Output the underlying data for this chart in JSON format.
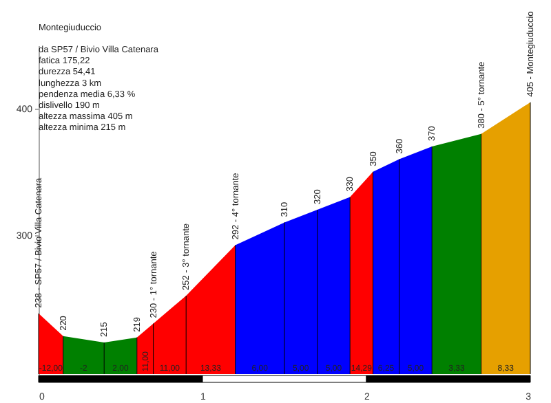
{
  "chart_data": {
    "type": "area",
    "title": "Montegiuduccio",
    "xlim": [
      0,
      3
    ],
    "xticks": [
      0,
      1,
      2,
      3
    ],
    "ylim": [
      190,
      450
    ],
    "yticks": [
      300,
      400
    ],
    "grid": false,
    "series": [
      {
        "color": "#ff0000",
        "x": [
          0,
          0.15
        ],
        "values": [
          238,
          220
        ]
      },
      {
        "color": "#008000",
        "x": [
          0.15,
          0.4,
          0.6
        ],
        "values": [
          220,
          215,
          219
        ]
      },
      {
        "color": "#ff0000",
        "x": [
          0.6,
          0.7,
          0.9,
          1.2
        ],
        "values": [
          219,
          230,
          252,
          292
        ]
      },
      {
        "color": "#0000ff",
        "x": [
          1.2,
          1.5,
          1.7,
          1.9
        ],
        "values": [
          292,
          310,
          320,
          330
        ]
      },
      {
        "color": "#ff0000",
        "x": [
          1.9,
          2.04
        ],
        "values": [
          330,
          350
        ]
      },
      {
        "color": "#0000ff",
        "x": [
          2.04,
          2.2,
          2.4
        ],
        "values": [
          350,
          360,
          370
        ]
      },
      {
        "color": "#008000",
        "x": [
          2.4,
          2.7
        ],
        "values": [
          370,
          380
        ]
      },
      {
        "color": "#e6a000",
        "x": [
          2.7,
          3
        ],
        "values": [
          380,
          405
        ]
      }
    ],
    "annotations": [
      "da SP57 / Bivio Villa Catenara",
      "fatica 175,22",
      "durezza 54,41",
      "lunghezza 3 km",
      "pendenza media 6,33 %",
      "dislivello 190 m",
      "altezza massima 405 m",
      "altezza minima 215 m",
      {
        "text": "238 - SP57 / Bivio Villa Catenara",
        "x": 0,
        "y": 238
      },
      {
        "text": "220",
        "x": 0.15,
        "y": 220
      },
      {
        "text": "215",
        "x": 0.4,
        "y": 215
      },
      {
        "text": "219",
        "x": 0.6,
        "y": 219
      },
      {
        "text": "230 - 1° tornante",
        "x": 0.7,
        "y": 230
      },
      {
        "text": "252 - 3° tornante",
        "x": 0.9,
        "y": 252
      },
      {
        "text": "292 - 4° tornante",
        "x": 1.2,
        "y": 292
      },
      {
        "text": "310",
        "x": 1.5,
        "y": 310
      },
      {
        "text": "320",
        "x": 1.7,
        "y": 320
      },
      {
        "text": "330",
        "x": 1.9,
        "y": 330
      },
      {
        "text": "350",
        "x": 2.04,
        "y": 350
      },
      {
        "text": "360",
        "x": 2.2,
        "y": 360
      },
      {
        "text": "370",
        "x": 2.4,
        "y": 370
      },
      {
        "text": "380 - 5° tornante",
        "x": 2.7,
        "y": 380
      },
      {
        "text": "405 - Montegiuduccio",
        "x": 3,
        "y": 405
      },
      {
        "text": "-12,00",
        "x": 0.075,
        "y": 195
      },
      {
        "text": "-2",
        "x": 0.275,
        "y": 195
      },
      {
        "text": "2,00",
        "x": 0.5,
        "y": 195
      },
      {
        "text": "11,00",
        "x": 0.65,
        "y": 192
      },
      {
        "text": "11,00",
        "x": 0.8,
        "y": 195
      },
      {
        "text": "13,33",
        "x": 1.05,
        "y": 195
      },
      {
        "text": "6,00",
        "x": 1.35,
        "y": 195
      },
      {
        "text": "5,00",
        "x": 1.6,
        "y": 195
      },
      {
        "text": "5,00",
        "x": 1.8,
        "y": 195
      },
      {
        "text": "14,29",
        "x": 1.97,
        "y": 195
      },
      {
        "text": "6,25",
        "x": 2.12,
        "y": 195
      },
      {
        "text": "5,00",
        "x": 2.3,
        "y": 195
      },
      {
        "text": "3,33",
        "x": 2.55,
        "y": 195
      },
      {
        "text": "8,33",
        "x": 2.85,
        "y": 195
      }
    ]
  }
}
